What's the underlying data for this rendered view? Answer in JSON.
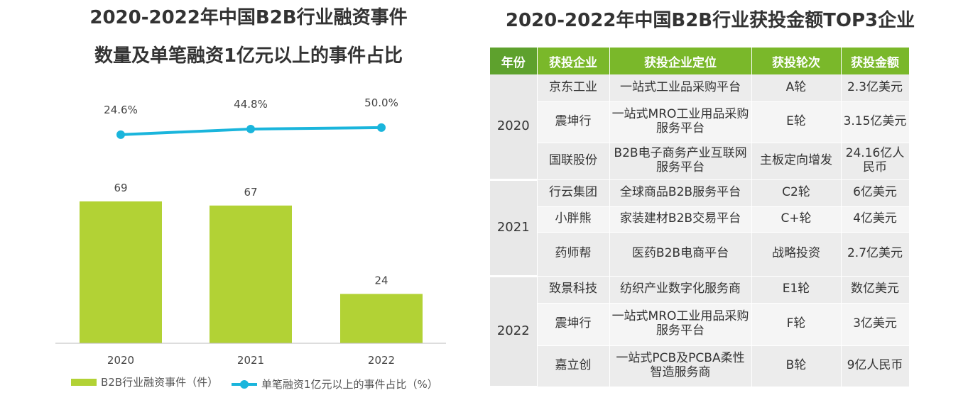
{
  "left": {
    "title_line1": "2020-2022年中国B2B行业融资事件",
    "title_line2": "数量及单笔融资1亿元以上的事件占比"
  },
  "chart_data": {
    "type": "bar",
    "categories": [
      "2020",
      "2021",
      "2022"
    ],
    "series": [
      {
        "name": "B2B行业融资事件（件）",
        "type": "bar",
        "values": [
          69,
          67,
          24
        ],
        "labels": [
          "69",
          "67",
          "24"
        ],
        "color": "#b2d235"
      },
      {
        "name": "单笔融资1亿元以上的事件占比（%）",
        "type": "line",
        "values": [
          24.6,
          44.8,
          50.0
        ],
        "labels": [
          "24.6%",
          "44.8%",
          "50.0%"
        ],
        "color": "#1ab5dc"
      }
    ],
    "legend_position": "bottom",
    "grid": false
  },
  "right": {
    "title": "2020-2022年中国B2B行业获投金额TOP3企业",
    "headers": [
      "年份",
      "获投企业",
      "获投企业定位",
      "获投轮次",
      "获投金额"
    ],
    "groups": [
      {
        "year": "2020",
        "rows": [
          {
            "company": "京东工业",
            "position": "一站式工业品采购平台",
            "round": "A轮",
            "amount": "2.3亿美元"
          },
          {
            "company": "震坤行",
            "position": "一站式MRO工业用品采购服务平台",
            "round": "E轮",
            "amount": "3.15亿美元"
          },
          {
            "company": "国联股份",
            "position": "B2B电子商务产业互联网服务平台",
            "round": "主板定向增发",
            "amount": "24.16亿人民币"
          }
        ]
      },
      {
        "year": "2021",
        "rows": [
          {
            "company": "行云集团",
            "position": "全球商品B2B服务平台",
            "round": "C2轮",
            "amount": "6亿美元"
          },
          {
            "company": "小胖熊",
            "position": "家装建材B2B交易平台",
            "round": "C+轮",
            "amount": "4亿美元"
          },
          {
            "company": "药师帮",
            "position": "医药B2B电商平台",
            "round": "战略投资",
            "amount": "2.7亿美元"
          }
        ]
      },
      {
        "year": "2022",
        "rows": [
          {
            "company": "致景科技",
            "position": "纺织产业数字化服务商",
            "round": "E1轮",
            "amount": "数亿美元"
          },
          {
            "company": "震坤行",
            "position": "一站式MRO工业用品采购服务平台",
            "round": "F轮",
            "amount": "3亿美元"
          },
          {
            "company": "嘉立创",
            "position": "一站式PCB及PCBA柔性智造服务商",
            "round": "B轮",
            "amount": "9亿人民币"
          }
        ]
      }
    ]
  }
}
